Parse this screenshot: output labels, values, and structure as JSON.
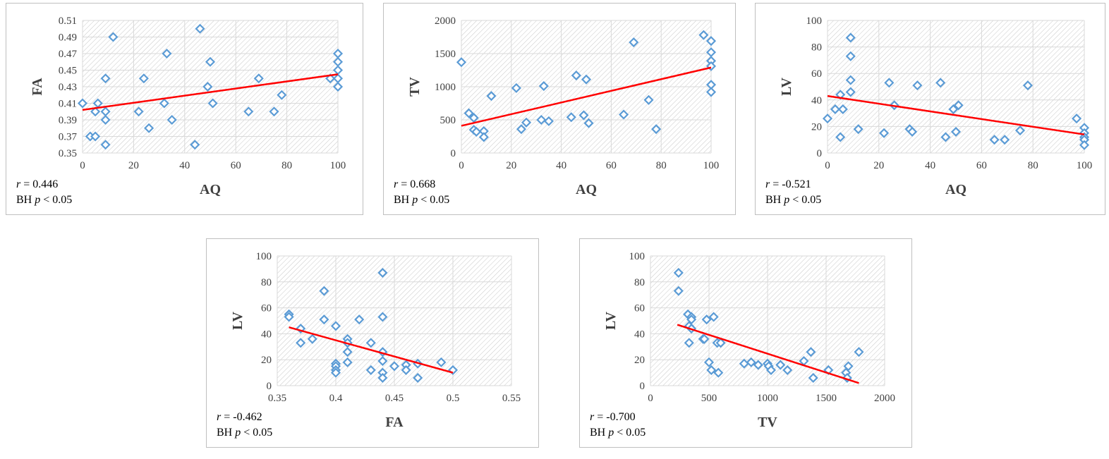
{
  "colors": {
    "point": "#5b9bd5",
    "trend": "#ff0000",
    "grid": "#d9d9d9",
    "hatch": "#c8c8c8"
  },
  "chart_data": [
    {
      "type": "scatter",
      "xlabel": "AQ",
      "ylabel": "FA",
      "xlim": [
        0,
        100
      ],
      "ylim": [
        0.35,
        0.51
      ],
      "xticks": [
        "0",
        "20",
        "40",
        "60",
        "80",
        "100"
      ],
      "yticks": [
        "0.35",
        "0.37",
        "0.39",
        "0.41",
        "0.43",
        "0.45",
        "0.47",
        "0.49",
        "0.51"
      ],
      "grid": true,
      "points": [
        [
          0,
          0.41
        ],
        [
          3,
          0.37
        ],
        [
          5,
          0.37
        ],
        [
          5,
          0.4
        ],
        [
          6,
          0.41
        ],
        [
          9,
          0.4
        ],
        [
          9,
          0.39
        ],
        [
          9,
          0.36
        ],
        [
          9,
          0.44
        ],
        [
          12,
          0.49
        ],
        [
          22,
          0.4
        ],
        [
          24,
          0.44
        ],
        [
          26,
          0.38
        ],
        [
          32,
          0.41
        ],
        [
          33,
          0.47
        ],
        [
          35,
          0.39
        ],
        [
          44,
          0.36
        ],
        [
          46,
          0.5
        ],
        [
          49,
          0.43
        ],
        [
          50,
          0.46
        ],
        [
          51,
          0.41
        ],
        [
          65,
          0.4
        ],
        [
          69,
          0.44
        ],
        [
          75,
          0.4
        ],
        [
          78,
          0.42
        ],
        [
          97,
          0.44
        ],
        [
          100,
          0.47
        ],
        [
          100,
          0.46
        ],
        [
          100,
          0.45
        ],
        [
          100,
          0.44
        ],
        [
          100,
          0.43
        ]
      ],
      "trend": [
        [
          0,
          0.402
        ],
        [
          100,
          0.445
        ]
      ],
      "r_label": "r",
      "r_value": " = 0.446",
      "p_prefix": "BH ",
      "p_label": "p",
      "p_value": " < 0.05"
    },
    {
      "type": "scatter",
      "xlabel": "AQ",
      "ylabel": "TV",
      "xlim": [
        0,
        100
      ],
      "ylim": [
        0,
        2000
      ],
      "xticks": [
        "0",
        "20",
        "40",
        "60",
        "80",
        "100"
      ],
      "yticks": [
        "0",
        "500",
        "1000",
        "1500",
        "2000"
      ],
      "grid": true,
      "points": [
        [
          0,
          1370
        ],
        [
          3,
          600
        ],
        [
          5,
          530
        ],
        [
          5,
          350
        ],
        [
          6,
          320
        ],
        [
          9,
          330
        ],
        [
          9,
          240
        ],
        [
          12,
          860
        ],
        [
          22,
          980
        ],
        [
          24,
          360
        ],
        [
          26,
          460
        ],
        [
          32,
          500
        ],
        [
          33,
          1010
        ],
        [
          35,
          480
        ],
        [
          44,
          540
        ],
        [
          46,
          1170
        ],
        [
          49,
          570
        ],
        [
          50,
          1110
        ],
        [
          51,
          450
        ],
        [
          65,
          580
        ],
        [
          69,
          1670
        ],
        [
          75,
          800
        ],
        [
          78,
          360
        ],
        [
          97,
          1780
        ],
        [
          100,
          1690
        ],
        [
          100,
          1520
        ],
        [
          100,
          1390
        ],
        [
          100,
          1310
        ],
        [
          100,
          1030
        ],
        [
          100,
          920
        ]
      ],
      "trend": [
        [
          0,
          410
        ],
        [
          100,
          1290
        ]
      ],
      "r_label": "r",
      "r_value": " = 0.668",
      "p_prefix": "BH ",
      "p_label": "p",
      "p_value": " < 0.05"
    },
    {
      "type": "scatter",
      "xlabel": "AQ",
      "ylabel": "LV",
      "xlim": [
        0,
        100
      ],
      "ylim": [
        0,
        100
      ],
      "xticks": [
        "0",
        "20",
        "40",
        "60",
        "80",
        "100"
      ],
      "yticks": [
        "0",
        "20",
        "40",
        "60",
        "80",
        "100"
      ],
      "grid": true,
      "points": [
        [
          0,
          26
        ],
        [
          3,
          33
        ],
        [
          5,
          12
        ],
        [
          5,
          44
        ],
        [
          6,
          33
        ],
        [
          9,
          87
        ],
        [
          9,
          73
        ],
        [
          9,
          55
        ],
        [
          9,
          46
        ],
        [
          12,
          18
        ],
        [
          22,
          15
        ],
        [
          24,
          53
        ],
        [
          26,
          36
        ],
        [
          32,
          18
        ],
        [
          33,
          16
        ],
        [
          35,
          51
        ],
        [
          44,
          53
        ],
        [
          46,
          12
        ],
        [
          49,
          33
        ],
        [
          50,
          16
        ],
        [
          51,
          36
        ],
        [
          65,
          10
        ],
        [
          69,
          10
        ],
        [
          75,
          17
        ],
        [
          78,
          51
        ],
        [
          97,
          26
        ],
        [
          100,
          19
        ],
        [
          100,
          15
        ],
        [
          100,
          12
        ],
        [
          100,
          10
        ],
        [
          100,
          6
        ]
      ],
      "trend": [
        [
          0,
          43
        ],
        [
          100,
          14
        ]
      ],
      "r_label": "r",
      "r_value": " = -0.521",
      "p_prefix": "BH ",
      "p_label": "p",
      "p_value": " < 0.05"
    },
    {
      "type": "scatter",
      "xlabel": "FA",
      "ylabel": "LV",
      "xlim": [
        0.35,
        0.55
      ],
      "ylim": [
        0,
        100
      ],
      "xticks": [
        "0.35",
        "0.4",
        "0.45",
        "0.5",
        "0.55"
      ],
      "yticks": [
        "0",
        "20",
        "40",
        "60",
        "80",
        "100"
      ],
      "grid": true,
      "points": [
        [
          0.36,
          55
        ],
        [
          0.36,
          53
        ],
        [
          0.37,
          44
        ],
        [
          0.37,
          33
        ],
        [
          0.38,
          36
        ],
        [
          0.39,
          73
        ],
        [
          0.39,
          51
        ],
        [
          0.4,
          46
        ],
        [
          0.4,
          17
        ],
        [
          0.4,
          15
        ],
        [
          0.4,
          12
        ],
        [
          0.4,
          10
        ],
        [
          0.41,
          36
        ],
        [
          0.41,
          33
        ],
        [
          0.41,
          26
        ],
        [
          0.41,
          18
        ],
        [
          0.42,
          51
        ],
        [
          0.43,
          33
        ],
        [
          0.43,
          12
        ],
        [
          0.44,
          87
        ],
        [
          0.44,
          53
        ],
        [
          0.44,
          26
        ],
        [
          0.44,
          19
        ],
        [
          0.44,
          10
        ],
        [
          0.44,
          6
        ],
        [
          0.45,
          15
        ],
        [
          0.46,
          16
        ],
        [
          0.46,
          12
        ],
        [
          0.47,
          17
        ],
        [
          0.47,
          6
        ],
        [
          0.49,
          18
        ],
        [
          0.5,
          12
        ]
      ],
      "trend": [
        [
          0.36,
          45
        ],
        [
          0.5,
          10
        ]
      ],
      "r_label": "r",
      "r_value": " = -0.462",
      "p_prefix": "BH ",
      "p_label": "p",
      "p_value": " < 0.05"
    },
    {
      "type": "scatter",
      "xlabel": "TV",
      "ylabel": "LV",
      "xlim": [
        0,
        2000
      ],
      "ylim": [
        0,
        100
      ],
      "xticks": [
        "0",
        "500",
        "1000",
        "1500",
        "2000"
      ],
      "yticks": [
        "0",
        "20",
        "40",
        "60",
        "80",
        "100"
      ],
      "grid": true,
      "points": [
        [
          240,
          87
        ],
        [
          240,
          73
        ],
        [
          320,
          55
        ],
        [
          330,
          46
        ],
        [
          330,
          33
        ],
        [
          350,
          53
        ],
        [
          350,
          51
        ],
        [
          350,
          44
        ],
        [
          450,
          36
        ],
        [
          460,
          36
        ],
        [
          480,
          51
        ],
        [
          500,
          18
        ],
        [
          520,
          12
        ],
        [
          540,
          53
        ],
        [
          570,
          33
        ],
        [
          580,
          10
        ],
        [
          600,
          33
        ],
        [
          800,
          17
        ],
        [
          860,
          18
        ],
        [
          920,
          16
        ],
        [
          1000,
          17
        ],
        [
          1010,
          15
        ],
        [
          1030,
          12
        ],
        [
          1110,
          16
        ],
        [
          1170,
          12
        ],
        [
          1310,
          19
        ],
        [
          1370,
          26
        ],
        [
          1390,
          6
        ],
        [
          1520,
          12
        ],
        [
          1670,
          10
        ],
        [
          1690,
          15
        ],
        [
          1680,
          6
        ],
        [
          1780,
          26
        ]
      ],
      "trend": [
        [
          230,
          47
        ],
        [
          1780,
          2
        ]
      ],
      "r_label": "r",
      "r_value": " = -0.700",
      "p_prefix": "BH ",
      "p_label": "p",
      "p_value": " < 0.05"
    }
  ]
}
